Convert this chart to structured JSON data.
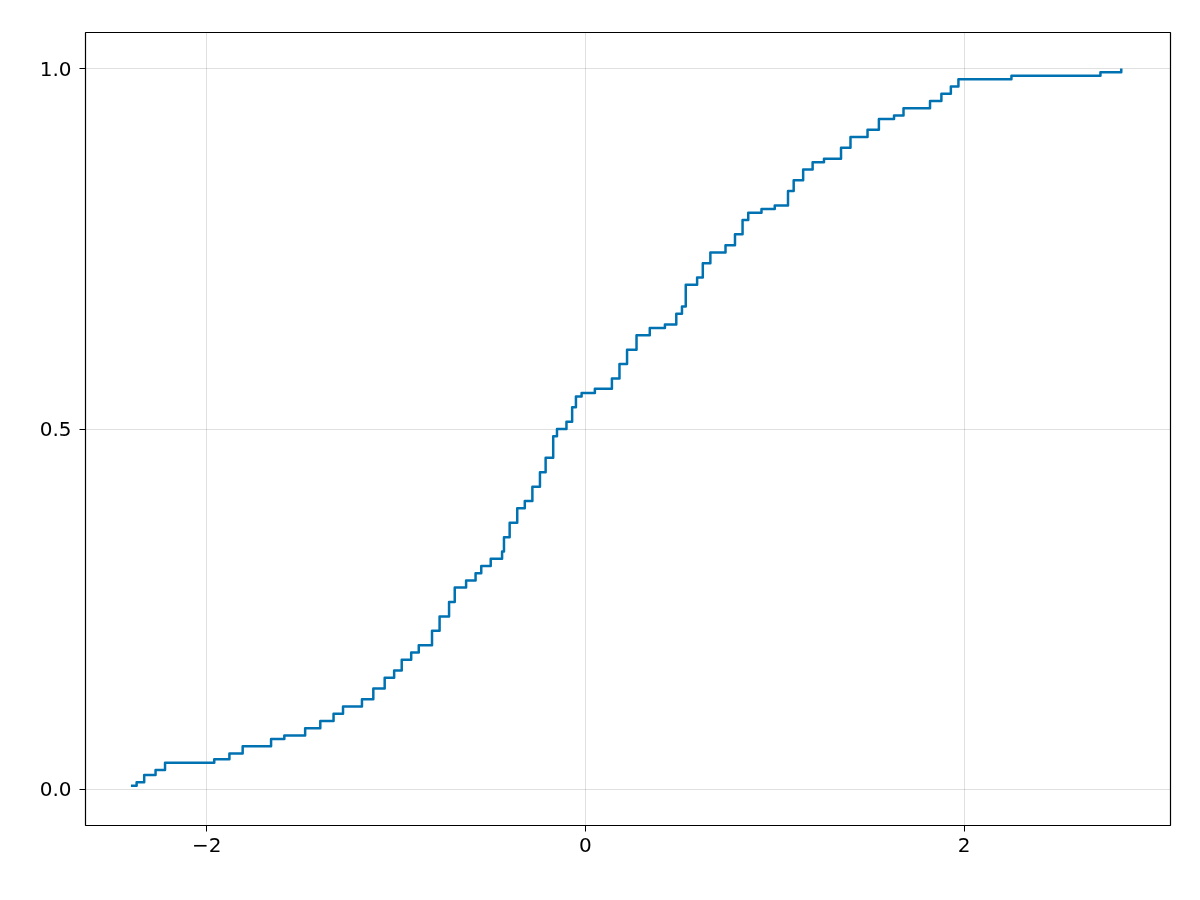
{
  "chart_data": {
    "type": "step",
    "x": [
      -2.4,
      -2.37,
      -2.33,
      -2.27,
      -2.22,
      -1.96,
      -1.88,
      -1.81,
      -1.66,
      -1.59,
      -1.48,
      -1.4,
      -1.33,
      -1.28,
      -1.18,
      -1.12,
      -1.06,
      -1.01,
      -0.97,
      -0.92,
      -0.88,
      -0.81,
      -0.77,
      -0.72,
      -0.69,
      -0.63,
      -0.58,
      -0.55,
      -0.5,
      -0.44,
      -0.43,
      -0.4,
      -0.36,
      -0.32,
      -0.28,
      -0.24,
      -0.21,
      -0.17,
      -0.15,
      -0.1,
      -0.07,
      -0.05,
      -0.02,
      0.05,
      0.14,
      0.18,
      0.22,
      0.27,
      0.34,
      0.42,
      0.48,
      0.51,
      0.53,
      0.59,
      0.62,
      0.66,
      0.74,
      0.79,
      0.83,
      0.86,
      0.93,
      1.0,
      1.07,
      1.1,
      1.15,
      1.2,
      1.26,
      1.35,
      1.4,
      1.49,
      1.55,
      1.63,
      1.68,
      1.82,
      1.88,
      1.93,
      1.97,
      2.25,
      2.72,
      2.83
    ],
    "series": [
      {
        "color": "#0072b2",
        "values": [
          0.005,
          0.01,
          0.02,
          0.027,
          0.037,
          0.042,
          0.05,
          0.06,
          0.07,
          0.075,
          0.085,
          0.095,
          0.105,
          0.115,
          0.125,
          0.14,
          0.155,
          0.165,
          0.18,
          0.19,
          0.2,
          0.22,
          0.24,
          0.26,
          0.28,
          0.29,
          0.3,
          0.31,
          0.32,
          0.33,
          0.35,
          0.37,
          0.39,
          0.4,
          0.42,
          0.44,
          0.46,
          0.49,
          0.5,
          0.51,
          0.53,
          0.545,
          0.55,
          0.556,
          0.57,
          0.59,
          0.61,
          0.63,
          0.64,
          0.645,
          0.66,
          0.67,
          0.7,
          0.71,
          0.73,
          0.745,
          0.755,
          0.77,
          0.79,
          0.8,
          0.805,
          0.81,
          0.83,
          0.845,
          0.86,
          0.87,
          0.875,
          0.89,
          0.905,
          0.915,
          0.93,
          0.935,
          0.945,
          0.955,
          0.965,
          0.975,
          0.985,
          0.99,
          0.995,
          1.0
        ]
      }
    ],
    "xlim": [
      -2.64,
      3.09
    ],
    "ylim": [
      -0.05,
      1.05
    ],
    "xticks": [
      {
        "value": -2,
        "label": "−2"
      },
      0,
      2
    ],
    "yticks": [
      {
        "value": 0,
        "label": "0.0"
      },
      {
        "value": 0.5,
        "label": "0.5"
      },
      {
        "value": 1,
        "label": "1.0"
      }
    ],
    "grid": true
  }
}
